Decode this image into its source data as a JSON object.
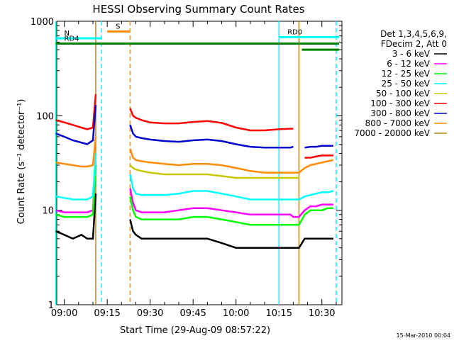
{
  "chart_data": {
    "type": "line",
    "title": "HESSI Observing Summary Count Rates",
    "xlabel": "Start Time (29-Aug-09 08:57:22)",
    "ylabel": "Count Rate (s⁻¹ detector⁻¹)",
    "footer_date": "15-Mar-2010 00:04",
    "yscale": "log",
    "ylim": [
      1,
      1000
    ],
    "xlim": [
      "08:57:22",
      "10:37:00"
    ],
    "x_ticks": [
      "09:00",
      "09:15",
      "09:30",
      "09:45",
      "10:00",
      "10:15",
      "10:30"
    ],
    "y_ticks": [
      {
        "value": 1,
        "label": "1"
      },
      {
        "value": 10,
        "label": "10"
      },
      {
        "value": 100,
        "label": "100"
      },
      {
        "value": 1000,
        "label": "1000"
      }
    ],
    "legend": {
      "header_lines": [
        "Det 1,3,4,5,6,9,",
        "FDecim 2, Att 0"
      ],
      "placement": "right"
    },
    "series": [
      {
        "name": "3 - 6 keV",
        "color": "#000000",
        "x": [
          "08:57",
          "09:00",
          "09:03",
          "09:06",
          "09:08",
          "09:10",
          "09:11",
          "09:13",
          "09:21",
          "09:23",
          "09:24",
          "09:25",
          "09:27",
          "09:30",
          "09:35",
          "09:40",
          "09:45",
          "09:50",
          "09:55",
          "10:00",
          "10:05",
          "10:10",
          "10:15",
          "10:19",
          "10:20",
          "10:22",
          "10:24",
          "10:26",
          "10:28",
          "10:30",
          "10:32",
          "10:34"
        ],
        "y": [
          6,
          5.5,
          5,
          5.5,
          5,
          5,
          15,
          null,
          null,
          8,
          6,
          5.5,
          5,
          5,
          5,
          5,
          5,
          5,
          4.5,
          4,
          4,
          4,
          4,
          4,
          4,
          4,
          5,
          5,
          5,
          5,
          5,
          5
        ]
      },
      {
        "name": "6 - 12 keV",
        "color": "#ff00ff",
        "x": [
          "08:57",
          "09:00",
          "09:03",
          "09:06",
          "09:08",
          "09:10",
          "09:11",
          "09:13",
          "09:21",
          "09:23",
          "09:24",
          "09:25",
          "09:27",
          "09:30",
          "09:35",
          "09:40",
          "09:45",
          "09:50",
          "09:55",
          "10:00",
          "10:05",
          "10:10",
          "10:15",
          "10:19",
          "10:20",
          "10:22",
          "10:24",
          "10:26",
          "10:28",
          "10:30",
          "10:32",
          "10:34"
        ],
        "y": [
          10,
          9.5,
          9.5,
          9.5,
          9.5,
          10,
          30,
          null,
          null,
          17,
          12,
          10,
          9.5,
          9.5,
          9.5,
          10,
          10.5,
          10.5,
          10,
          9.5,
          9,
          9,
          9,
          9,
          8.5,
          8.5,
          10,
          11,
          11,
          11.5,
          11.5,
          11.5
        ]
      },
      {
        "name": "12 - 25 keV",
        "color": "#00ff00",
        "x": [
          "08:57",
          "09:00",
          "09:03",
          "09:06",
          "09:08",
          "09:10",
          "09:11",
          "09:13",
          "09:21",
          "09:23",
          "09:24",
          "09:25",
          "09:27",
          "09:30",
          "09:35",
          "09:40",
          "09:45",
          "09:50",
          "09:55",
          "10:00",
          "10:05",
          "10:10",
          "10:15",
          "10:19",
          "10:20",
          "10:22",
          "10:24",
          "10:26",
          "10:28",
          "10:30",
          "10:32",
          "10:34"
        ],
        "y": [
          9,
          8.5,
          8.5,
          8.5,
          8.5,
          9,
          30,
          null,
          null,
          14,
          10,
          8.5,
          8,
          8,
          8,
          8,
          8.5,
          8.5,
          8,
          7.5,
          7,
          7,
          7,
          7,
          7,
          7,
          9,
          10,
          10,
          10,
          10.5,
          10.5
        ]
      },
      {
        "name": "25 - 50 keV",
        "color": "#00ffff",
        "x": [
          "08:57",
          "09:00",
          "09:03",
          "09:06",
          "09:08",
          "09:10",
          "09:11",
          "09:13",
          "09:21",
          "09:23",
          "09:24",
          "09:25",
          "09:27",
          "09:30",
          "09:35",
          "09:40",
          "09:45",
          "09:50",
          "09:55",
          "10:00",
          "10:05",
          "10:10",
          "10:15",
          "10:19",
          "10:20",
          "10:22",
          "10:24",
          "10:26",
          "10:28",
          "10:30",
          "10:32",
          "10:34"
        ],
        "y": [
          14,
          13.5,
          13,
          13,
          13,
          14,
          40,
          null,
          null,
          24,
          17,
          15,
          14.5,
          14.5,
          14.5,
          15,
          16,
          16,
          15,
          14,
          13,
          13,
          13,
          13,
          13,
          13,
          14,
          14.5,
          15,
          15.5,
          15.5,
          16
        ]
      },
      {
        "name": "50 - 100 keV",
        "color": "#c8c800",
        "x": [
          "09:23",
          "09:24",
          "09:25",
          "09:27",
          "09:30",
          "09:35",
          "09:40",
          "09:45",
          "09:50",
          "09:55",
          "10:00",
          "10:05",
          "10:10",
          "10:15",
          "10:19",
          "10:22"
        ],
        "y": [
          30,
          28,
          27,
          26,
          25,
          24,
          24,
          24,
          24,
          23,
          22,
          22,
          22,
          22,
          22,
          22
        ]
      },
      {
        "name": "100 - 300 keV",
        "color": "#ff0000",
        "x": [
          "08:57",
          "09:00",
          "09:03",
          "09:06",
          "09:08",
          "09:10",
          "09:11",
          "09:13",
          "09:21",
          "09:23",
          "09:24",
          "09:25",
          "09:27",
          "09:30",
          "09:35",
          "09:40",
          "09:45",
          "09:50",
          "09:55",
          "10:00",
          "10:05",
          "10:10",
          "10:15",
          "10:19",
          "10:20",
          "10:22",
          "10:24",
          "10:26",
          "10:28",
          "10:30",
          "10:32",
          "10:34"
        ],
        "y": [
          90,
          85,
          80,
          75,
          72,
          75,
          170,
          null,
          null,
          120,
          100,
          95,
          90,
          85,
          83,
          83,
          86,
          88,
          84,
          75,
          70,
          70,
          72,
          73,
          73,
          null,
          36,
          36,
          37,
          38,
          38,
          38
        ]
      },
      {
        "name": "300 - 800 keV",
        "color": "#0000cc",
        "x": [
          "08:57",
          "09:00",
          "09:03",
          "09:06",
          "09:08",
          "09:10",
          "09:11",
          "09:13",
          "09:21",
          "09:23",
          "09:24",
          "09:25",
          "09:27",
          "09:30",
          "09:35",
          "09:40",
          "09:45",
          "09:50",
          "09:55",
          "10:00",
          "10:05",
          "10:10",
          "10:15",
          "10:19",
          "10:20",
          "10:22",
          "10:24",
          "10:26",
          "10:28",
          "10:30",
          "10:32",
          "10:34"
        ],
        "y": [
          65,
          60,
          55,
          52,
          50,
          55,
          130,
          null,
          null,
          80,
          65,
          60,
          58,
          56,
          54,
          53,
          55,
          56,
          54,
          50,
          47,
          46,
          46,
          46,
          47,
          null,
          46,
          47,
          47,
          48,
          48,
          48
        ]
      },
      {
        "name": "800 - 7000 keV",
        "color": "#ff8c00",
        "x": [
          "08:57",
          "09:00",
          "09:03",
          "09:06",
          "09:08",
          "09:10",
          "09:11",
          "09:13",
          "09:21",
          "09:23",
          "09:24",
          "09:25",
          "09:27",
          "09:30",
          "09:35",
          "09:40",
          "09:45",
          "09:50",
          "09:55",
          "10:00",
          "10:05",
          "10:10",
          "10:15",
          "10:19",
          "10:20",
          "10:22",
          "10:24",
          "10:26",
          "10:28",
          "10:30",
          "10:32",
          "10:34"
        ],
        "y": [
          32,
          31,
          30,
          29,
          29,
          30,
          60,
          null,
          null,
          45,
          36,
          34,
          33,
          32,
          31,
          30,
          31,
          31,
          30,
          28,
          26,
          25,
          25,
          25,
          25,
          25,
          28,
          30,
          31,
          32,
          33,
          34
        ]
      },
      {
        "name": "7000 - 20000 keV",
        "color": "#b8860b",
        "x": [],
        "y": []
      }
    ],
    "attenuator_bars": [
      {
        "label": "S",
        "color": "#ff8c00",
        "start": "09:15",
        "end": "09:23",
        "level_value": 780
      },
      {
        "label": "N",
        "color": "#00ffff",
        "start": "08:57",
        "end": "09:13",
        "level_value": 660
      },
      {
        "label": "RD0",
        "color": "#00ffff",
        "start": "10:15",
        "end": "10:36",
        "level_value": 680
      },
      {
        "label": "RD4",
        "color": "#008000",
        "start": "08:57",
        "end": "10:36",
        "level_value": 580
      },
      {
        "label": "",
        "color": "#008000",
        "start": "10:23",
        "end": "10:36",
        "level_value": 500
      }
    ],
    "vertical_markers": [
      {
        "time": "08:57",
        "color": "#00ffff",
        "style": "solid"
      },
      {
        "time": "09:11",
        "color": "#b8860b",
        "style": "solid"
      },
      {
        "time": "09:13",
        "color": "#00ffff",
        "style": "dashed"
      },
      {
        "time": "09:23",
        "color": "#ff8c00",
        "style": "dashed"
      },
      {
        "time": "10:15",
        "color": "#00ffff",
        "style": "solid"
      },
      {
        "time": "10:22",
        "color": "#b8860b",
        "style": "solid"
      },
      {
        "time": "10:35",
        "color": "#00ffff",
        "style": "dashed"
      }
    ]
  }
}
